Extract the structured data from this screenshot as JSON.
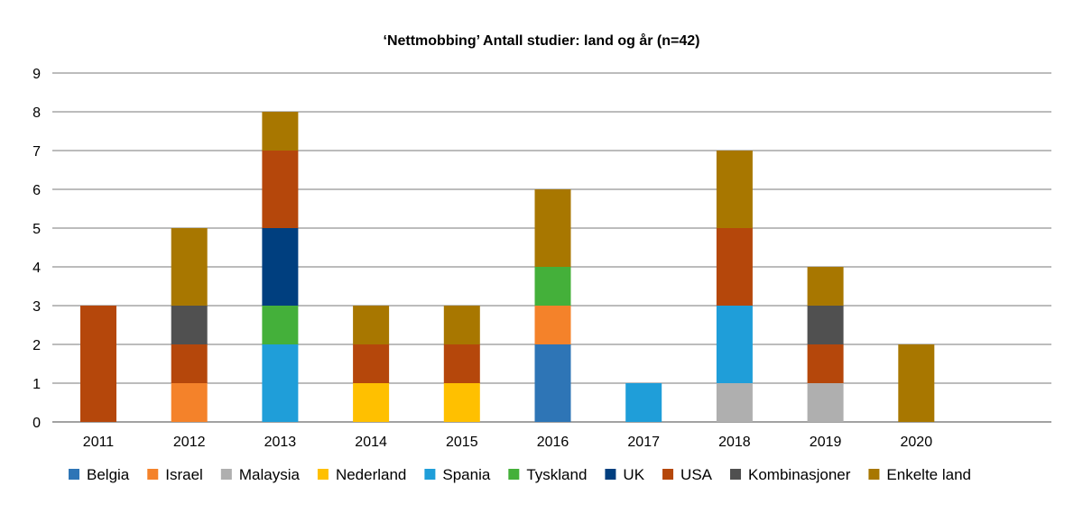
{
  "chart_data": {
    "type": "bar",
    "stacked": true,
    "title": "‘Nettmobbing’ Antall studier: land og år (n=42)",
    "xlabel": "",
    "ylabel": "",
    "ylim": [
      0,
      9
    ],
    "yticks": [
      "0",
      "1",
      "2",
      "3",
      "4",
      "5",
      "6",
      "7",
      "8",
      "9"
    ],
    "grid": true,
    "legend_position": "bottom",
    "categories": [
      "2011",
      "2012",
      "2013",
      "2014",
      "2015",
      "2016",
      "2017",
      "2018",
      "2019",
      "2020"
    ],
    "series": [
      {
        "name": "Belgia",
        "color": "#2e75b6",
        "values": [
          0,
          0,
          0,
          0,
          0,
          2,
          0,
          0,
          0,
          0
        ]
      },
      {
        "name": "Israel",
        "color": "#f4822a",
        "values": [
          0,
          1,
          0,
          0,
          0,
          1,
          0,
          0,
          0,
          0
        ]
      },
      {
        "name": "Malaysia",
        "color": "#afafaf",
        "values": [
          0,
          0,
          0,
          0,
          0,
          0,
          0,
          1,
          1,
          0
        ]
      },
      {
        "name": "Nederland",
        "color": "#ffc000",
        "values": [
          0,
          0,
          0,
          1,
          1,
          0,
          0,
          0,
          0,
          0
        ]
      },
      {
        "name": "Spania",
        "color": "#1f9ed9",
        "values": [
          0,
          0,
          2,
          0,
          0,
          0,
          1,
          2,
          0,
          0
        ]
      },
      {
        "name": "Tyskland",
        "color": "#44b03a",
        "values": [
          0,
          0,
          1,
          0,
          0,
          1,
          0,
          0,
          0,
          0
        ]
      },
      {
        "name": "UK",
        "color": "#003f7f",
        "values": [
          0,
          0,
          2,
          0,
          0,
          0,
          0,
          0,
          0,
          0
        ]
      },
      {
        "name": "USA",
        "color": "#b5470b",
        "values": [
          3,
          1,
          2,
          1,
          1,
          0,
          0,
          2,
          1,
          0
        ]
      },
      {
        "name": "Kombinasjoner",
        "color": "#505050",
        "values": [
          0,
          1,
          0,
          0,
          0,
          0,
          0,
          0,
          1,
          0
        ]
      },
      {
        "name": "Enkelte land",
        "color": "#a87700",
        "values": [
          0,
          2,
          1,
          1,
          1,
          2,
          0,
          2,
          1,
          2
        ]
      }
    ]
  }
}
